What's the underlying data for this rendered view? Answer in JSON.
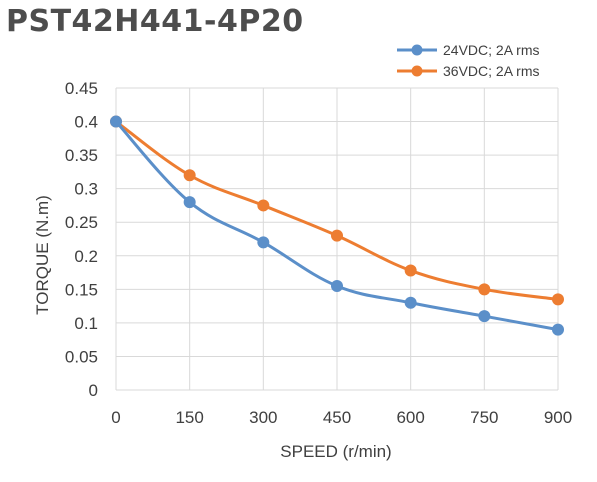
{
  "chart_data": {
    "type": "line",
    "title": "PST42H441-4P20",
    "xlabel": "SPEED (r/min)",
    "ylabel": "TORQUE (N.m)",
    "x": [
      0,
      150,
      300,
      450,
      600,
      750,
      900
    ],
    "xlim": [
      0,
      900
    ],
    "ylim": [
      0,
      0.45
    ],
    "x_ticks": [
      "0",
      "150",
      "300",
      "450",
      "600",
      "750",
      "900"
    ],
    "y_ticks": [
      "0",
      "0.05",
      "0.1",
      "0.15",
      "0.2",
      "0.25",
      "0.3",
      "0.35",
      "0.4",
      "0.45"
    ],
    "grid": true,
    "legend_position": "top-right",
    "series": [
      {
        "name": "24VDC; 2A rms",
        "color": "#5b8fc9",
        "values": [
          0.4,
          0.28,
          0.22,
          0.155,
          0.13,
          0.11,
          0.09
        ]
      },
      {
        "name": "36VDC; 2A rms",
        "color": "#ed7d31",
        "values": [
          0.4,
          0.32,
          0.275,
          0.23,
          0.178,
          0.15,
          0.135
        ]
      }
    ]
  }
}
